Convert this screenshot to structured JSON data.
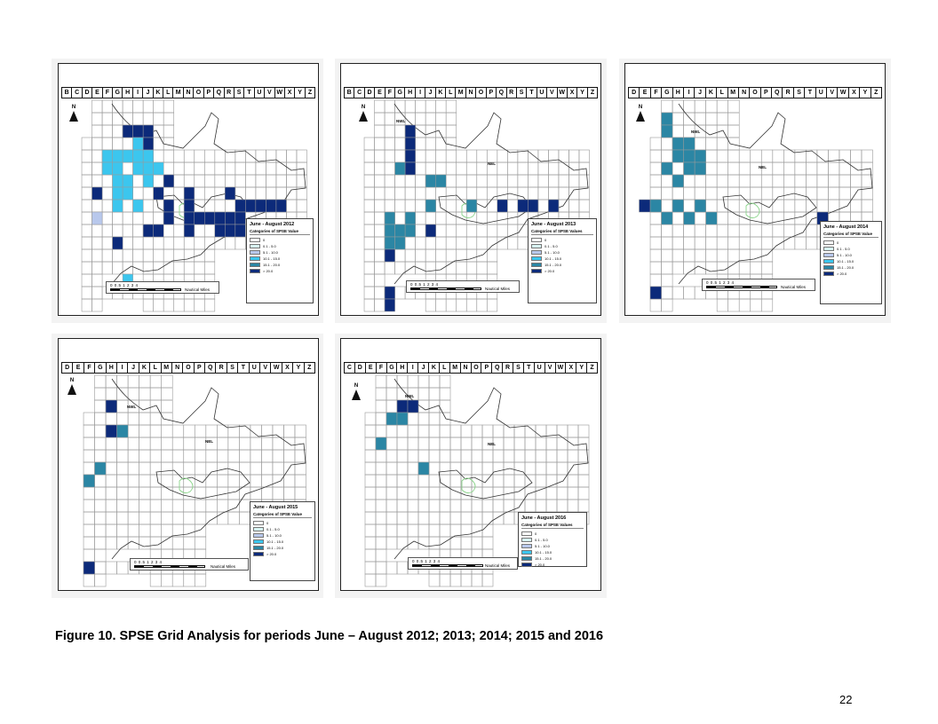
{
  "colors": {
    "class_0": "#ffffff",
    "class_1": "#d7f3f1",
    "class_2": "#b8c8ec",
    "class_3": "#3cc6ee",
    "class_4": "#2b86a4",
    "class_5": "#0c2a7a"
  },
  "panels": [
    {
      "period": "June - August 2012",
      "legend_subtitle": "Categories of SPSE Value",
      "columns": [
        "B",
        "C",
        "D",
        "E",
        "F",
        "G",
        "H",
        "I",
        "J",
        "K",
        "L",
        "M",
        "N",
        "O",
        "P",
        "Q",
        "R",
        "S",
        "T",
        "U",
        "V",
        "W",
        "X",
        "Y",
        "Z"
      ],
      "north_label": "N",
      "nwl_label": "",
      "nel_label": "",
      "scale_ticks": "0   0.5   1        2        3        4",
      "scale_unit": "Nautical Miles",
      "legend_items": [
        "0",
        "0.1 - 5.0",
        "5.1 - 10.0",
        "10.1 - 15.0",
        "15.1 - 20.0",
        "> 20.0"
      ],
      "cells": [
        [
          "H",
          2,
          5
        ],
        [
          "I",
          2,
          5
        ],
        [
          "J",
          2,
          5
        ],
        [
          "I",
          3,
          3
        ],
        [
          "J",
          3,
          5
        ],
        [
          "F",
          4,
          3
        ],
        [
          "G",
          4,
          3
        ],
        [
          "H",
          4,
          3
        ],
        [
          "I",
          4,
          3
        ],
        [
          "J",
          4,
          3
        ],
        [
          "F",
          5,
          3
        ],
        [
          "G",
          5,
          3
        ],
        [
          "I",
          5,
          3
        ],
        [
          "J",
          5,
          3
        ],
        [
          "K",
          5,
          3
        ],
        [
          "G",
          6,
          3
        ],
        [
          "H",
          6,
          3
        ],
        [
          "J",
          6,
          3
        ],
        [
          "L",
          6,
          5
        ],
        [
          "E",
          7,
          5
        ],
        [
          "G",
          7,
          3
        ],
        [
          "H",
          7,
          3
        ],
        [
          "K",
          7,
          5
        ],
        [
          "N",
          7,
          5
        ],
        [
          "R",
          7,
          5
        ],
        [
          "G",
          8,
          3
        ],
        [
          "I",
          8,
          3
        ],
        [
          "L",
          8,
          5
        ],
        [
          "N",
          8,
          5
        ],
        [
          "S",
          8,
          5
        ],
        [
          "T",
          8,
          5
        ],
        [
          "U",
          8,
          5
        ],
        [
          "V",
          8,
          5
        ],
        [
          "W",
          8,
          5
        ],
        [
          "E",
          9,
          2
        ],
        [
          "L",
          9,
          5
        ],
        [
          "N",
          9,
          5
        ],
        [
          "O",
          9,
          5
        ],
        [
          "P",
          9,
          5
        ],
        [
          "Q",
          9,
          5
        ],
        [
          "R",
          9,
          5
        ],
        [
          "S",
          9,
          5
        ],
        [
          "J",
          10,
          5
        ],
        [
          "K",
          10,
          5
        ],
        [
          "N",
          10,
          5
        ],
        [
          "Q",
          10,
          5
        ],
        [
          "R",
          10,
          5
        ],
        [
          "S",
          10,
          5
        ],
        [
          "G",
          11,
          5
        ],
        [
          "H",
          14,
          3
        ]
      ]
    },
    {
      "period": "June - August 2013",
      "legend_subtitle": "Categories of SPSE Values",
      "columns": [
        "B",
        "C",
        "D",
        "E",
        "F",
        "G",
        "H",
        "I",
        "J",
        "K",
        "L",
        "M",
        "N",
        "O",
        "P",
        "Q",
        "R",
        "S",
        "T",
        "U",
        "V",
        "W",
        "X",
        "Y",
        "Z"
      ],
      "north_label": "N",
      "nwl_label": "NWL",
      "nel_label": "NEL",
      "scale_ticks": "0   0.5   1        2        3        4",
      "scale_unit": "Nautical Miles",
      "legend_items": [
        "0",
        "0.1 - 5.0",
        "5.1 - 10.0",
        "10.1 - 15.0",
        "15.1 - 20.0",
        "> 20.0"
      ],
      "cells": [
        [
          "H",
          2,
          5
        ],
        [
          "H",
          3,
          5
        ],
        [
          "H",
          4,
          5
        ],
        [
          "H",
          5,
          5
        ],
        [
          "G",
          5,
          4
        ],
        [
          "H",
          5,
          5
        ],
        [
          "J",
          6,
          4
        ],
        [
          "K",
          6,
          4
        ],
        [
          "J",
          8,
          4
        ],
        [
          "N",
          8,
          4
        ],
        [
          "Q",
          8,
          5
        ],
        [
          "S",
          8,
          5
        ],
        [
          "T",
          8,
          5
        ],
        [
          "V",
          8,
          5
        ],
        [
          "F",
          9,
          4
        ],
        [
          "H",
          9,
          4
        ],
        [
          "F",
          10,
          4
        ],
        [
          "G",
          10,
          4
        ],
        [
          "H",
          10,
          4
        ],
        [
          "J",
          10,
          5
        ],
        [
          "F",
          11,
          4
        ],
        [
          "G",
          11,
          4
        ],
        [
          "F",
          12,
          5
        ],
        [
          "F",
          15,
          5
        ],
        [
          "F",
          16,
          5
        ]
      ]
    },
    {
      "period": "June - August 2014",
      "legend_subtitle": "Categories of SPSE Value",
      "columns": [
        "D",
        "E",
        "F",
        "G",
        "H",
        "I",
        "J",
        "K",
        "L",
        "M",
        "N",
        "O",
        "P",
        "Q",
        "R",
        "S",
        "T",
        "U",
        "V",
        "W",
        "X",
        "Y",
        "Z"
      ],
      "north_label": "N",
      "nwl_label": "NWL",
      "nel_label": "NEL",
      "scale_ticks": "0   0.5   1        2        3        4",
      "scale_unit": "Nautical Miles",
      "legend_items": [
        "0",
        "0.1 - 5.0",
        "5.1 - 10.0",
        "10.1 - 15.0",
        "15.1 - 20.0",
        "> 20.0"
      ],
      "cells": [
        [
          "G",
          1,
          4
        ],
        [
          "G",
          2,
          4
        ],
        [
          "H",
          3,
          4
        ],
        [
          "I",
          3,
          4
        ],
        [
          "H",
          4,
          4
        ],
        [
          "I",
          4,
          4
        ],
        [
          "J",
          4,
          4
        ],
        [
          "G",
          5,
          4
        ],
        [
          "I",
          5,
          4
        ],
        [
          "J",
          5,
          4
        ],
        [
          "H",
          6,
          4
        ],
        [
          "E",
          8,
          5
        ],
        [
          "F",
          8,
          4
        ],
        [
          "H",
          8,
          4
        ],
        [
          "J",
          8,
          4
        ],
        [
          "G",
          9,
          4
        ],
        [
          "I",
          9,
          4
        ],
        [
          "K",
          9,
          4
        ],
        [
          "U",
          9,
          5
        ],
        [
          "F",
          15,
          5
        ]
      ]
    },
    {
      "period": "June - August 2015",
      "legend_subtitle": "Categories of SPSE Value",
      "columns": [
        "D",
        "E",
        "F",
        "G",
        "H",
        "I",
        "J",
        "K",
        "L",
        "M",
        "N",
        "O",
        "P",
        "Q",
        "R",
        "S",
        "T",
        "U",
        "V",
        "W",
        "X",
        "Y",
        "Z"
      ],
      "north_label": "N",
      "nwl_label": "NWL",
      "nel_label": "NEL",
      "scale_ticks": "0   0.5   1        2        3        4",
      "scale_unit": "Nautical Miles",
      "legend_items": [
        "0",
        "0.1 - 5.0",
        "5.1 - 10.0",
        "10.1 - 15.0",
        "15.1 - 20.0",
        "> 20.0"
      ],
      "cells": [
        [
          "H",
          2,
          5
        ],
        [
          "H",
          4,
          5
        ],
        [
          "I",
          4,
          4
        ],
        [
          "G",
          7,
          4
        ],
        [
          "F",
          8,
          4
        ],
        [
          "F",
          15,
          5
        ]
      ]
    },
    {
      "period": "June - August 2016",
      "legend_subtitle": "Categories of SPSE Values",
      "columns": [
        "C",
        "D",
        "E",
        "F",
        "G",
        "H",
        "I",
        "J",
        "K",
        "L",
        "M",
        "N",
        "O",
        "P",
        "Q",
        "R",
        "S",
        "T",
        "U",
        "V",
        "W",
        "X",
        "Y",
        "Z"
      ],
      "north_label": "N",
      "nwl_label": "NWL",
      "nel_label": "NEL",
      "scale_ticks": "0   0.5   1        2        3        4",
      "scale_unit": "Nautical Miles",
      "legend_items": [
        "0",
        "0.1 - 5.0",
        "5.1 - 10.0",
        "10.1 - 15.0",
        "15.1 - 20.0",
        "> 20.0"
      ],
      "cells": [
        [
          "H",
          2,
          5
        ],
        [
          "I",
          2,
          5
        ],
        [
          "G",
          3,
          4
        ],
        [
          "H",
          3,
          4
        ],
        [
          "F",
          5,
          4
        ],
        [
          "J",
          7,
          4
        ]
      ]
    }
  ],
  "caption": "Figure 10.  SPSE Grid Analysis for periods June – August 2012; 2013; 2014; 2015 and 2016",
  "page_number": "22"
}
